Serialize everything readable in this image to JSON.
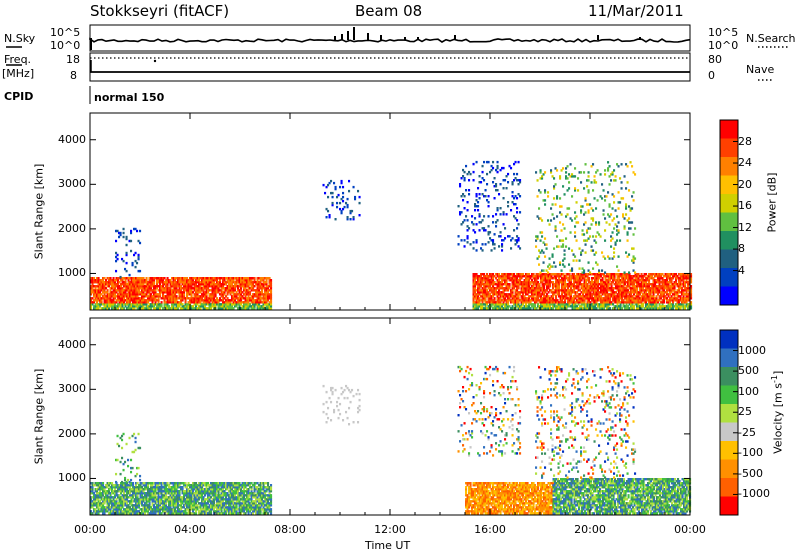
{
  "header": {
    "station": "Stokkseyri (fitACF)",
    "beam": "Beam 08",
    "date": "11/Mar/2011"
  },
  "nsky_panel": {
    "left_label": "N.Sky",
    "right_label": "N.Search",
    "left_ticks": [
      "10^5",
      "10^0"
    ],
    "right_ticks": [
      "10^5",
      "10^0"
    ]
  },
  "freq_panel": {
    "left_label_1": "Freq.",
    "left_label_2": "[MHz]",
    "right_label": "Nave",
    "left_ticks": [
      "18",
      "8"
    ],
    "right_ticks": [
      "80",
      "0"
    ]
  },
  "cpid": {
    "label": "CPID",
    "value": "normal 150"
  },
  "chart_data": [
    {
      "type": "heatmap",
      "title": "",
      "ylabel": "Slant Range [km]",
      "xlabel": "",
      "xlim": [
        "00:00",
        "24:00"
      ],
      "ylim": [
        180,
        4600
      ],
      "x_tick_labels": [
        "00:00",
        "04:00",
        "08:00",
        "12:00",
        "16:00",
        "20:00",
        "00:00"
      ],
      "y_tick_labels": [
        "1000",
        "2000",
        "3000",
        "4000"
      ],
      "colorbar": {
        "label": "Power [dB]",
        "tick_labels": [
          "28",
          "24",
          "20",
          "16",
          "12",
          "8",
          "4"
        ],
        "colors": [
          "#ff0000",
          "#ff4000",
          "#ff8000",
          "#ffc000",
          "#d0d000",
          "#60c040",
          "#209060",
          "#206080",
          "#0040c0",
          "#0000ff"
        ]
      },
      "regions": [
        {
          "t0": 0.0,
          "t1": 7.2,
          "r0": 200,
          "r1": 900,
          "level": "strong"
        },
        {
          "t0": 1.0,
          "t1": 2.0,
          "r0": 900,
          "r1": 2000,
          "level": "weak"
        },
        {
          "t0": 9.3,
          "t1": 10.8,
          "r0": 2200,
          "r1": 3100,
          "level": "weak"
        },
        {
          "t0": 14.7,
          "t1": 17.2,
          "r0": 1500,
          "r1": 3500,
          "level": "weak"
        },
        {
          "t0": 15.3,
          "t1": 24.0,
          "r0": 200,
          "r1": 1000,
          "level": "strong"
        },
        {
          "t0": 17.8,
          "t1": 21.8,
          "r0": 1000,
          "r1": 3500,
          "level": "medium"
        }
      ]
    },
    {
      "type": "heatmap",
      "title": "",
      "ylabel": "Slant Range [km]",
      "xlabel": "Time UT",
      "xlim": [
        "00:00",
        "24:00"
      ],
      "ylim": [
        180,
        4600
      ],
      "x_tick_labels": [
        "00:00",
        "04:00",
        "08:00",
        "12:00",
        "16:00",
        "20:00",
        "00:00"
      ],
      "y_tick_labels": [
        "1000",
        "2000",
        "3000",
        "4000"
      ],
      "colorbar": {
        "label": "Velocity [m s^-1]",
        "tick_labels": [
          "1000",
          "500",
          "100",
          "25",
          "-25",
          "-100",
          "-500",
          "-1000"
        ],
        "colors": [
          "#0030c0",
          "#3070c0",
          "#3b8f60",
          "#40c040",
          "#b0e040",
          "#c8c8c8",
          "#ffc000",
          "#ff9000",
          "#ff6000",
          "#ff0000"
        ]
      },
      "regions": [
        {
          "t0": 0.0,
          "t1": 7.2,
          "r0": 200,
          "r1": 900,
          "sign": "positive"
        },
        {
          "t0": 1.0,
          "t1": 2.0,
          "r0": 900,
          "r1": 2000,
          "sign": "positive"
        },
        {
          "t0": 9.3,
          "t1": 10.8,
          "r0": 2200,
          "r1": 3100,
          "sign": "near-zero"
        },
        {
          "t0": 14.7,
          "t1": 17.2,
          "r0": 1500,
          "r1": 3500,
          "sign": "mixed"
        },
        {
          "t0": 15.0,
          "t1": 18.5,
          "r0": 200,
          "r1": 900,
          "sign": "negative"
        },
        {
          "t0": 18.5,
          "t1": 24.0,
          "r0": 200,
          "r1": 1000,
          "sign": "positive"
        },
        {
          "t0": 17.8,
          "t1": 21.8,
          "r0": 1000,
          "r1": 3500,
          "sign": "mixed"
        }
      ]
    }
  ]
}
